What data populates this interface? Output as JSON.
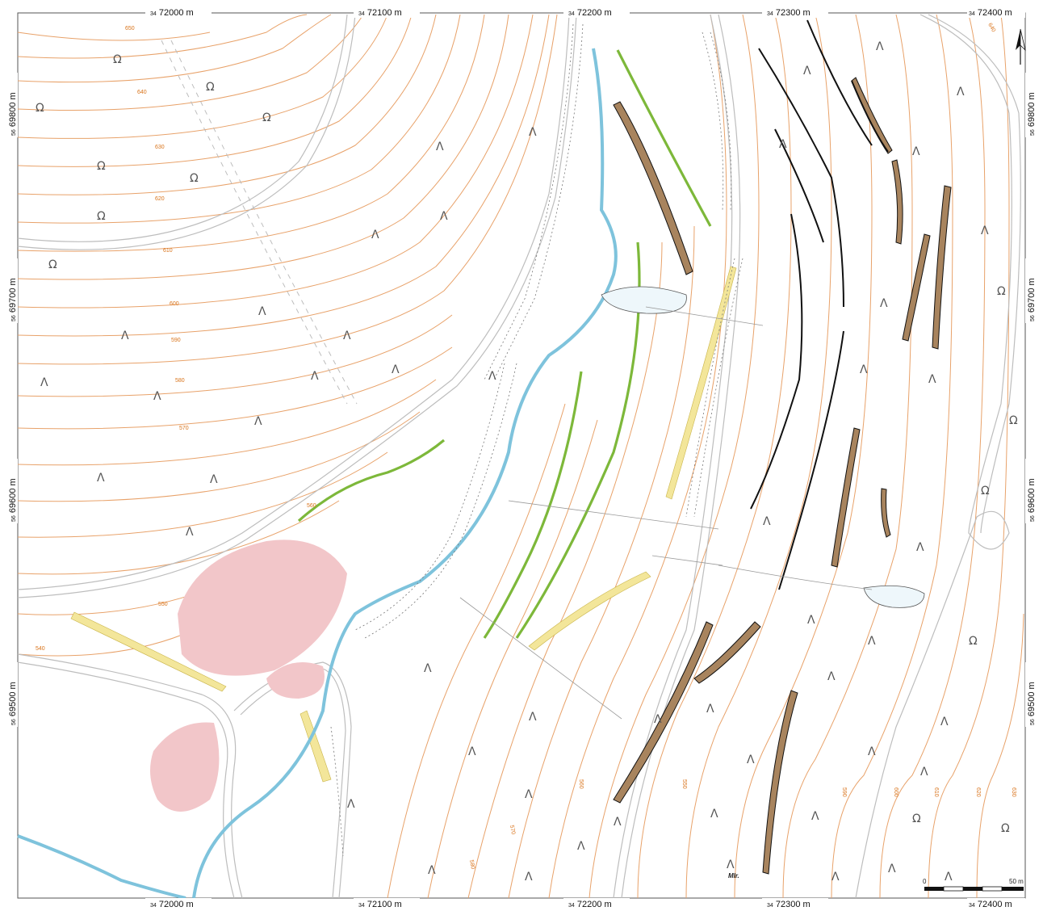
{
  "map": {
    "grid_top": [
      {
        "prefix": "34",
        "value": "72000 m"
      },
      {
        "prefix": "34",
        "value": "72100 m"
      },
      {
        "prefix": "34",
        "value": "72200 m"
      },
      {
        "prefix": "34",
        "value": "72300 m"
      },
      {
        "prefix": "34",
        "value": "72400 m"
      }
    ],
    "grid_bottom": [
      {
        "prefix": "34",
        "value": "72000 m"
      },
      {
        "prefix": "34",
        "value": "72100 m"
      },
      {
        "prefix": "34",
        "value": "72200 m"
      },
      {
        "prefix": "34",
        "value": "72300 m"
      },
      {
        "prefix": "34",
        "value": "72400 m"
      }
    ],
    "grid_side": [
      {
        "prefix": "56",
        "value": "69800 m"
      },
      {
        "prefix": "56",
        "value": "69700 m"
      },
      {
        "prefix": "56",
        "value": "69600 m"
      },
      {
        "prefix": "56",
        "value": "69500 m"
      }
    ],
    "contour_labels_left": [
      "650",
      "640",
      "630",
      "620",
      "610",
      "600",
      "590",
      "580",
      "570",
      "560",
      "550",
      "540"
    ],
    "contour_labels_right": [
      "560",
      "550",
      "570",
      "580",
      "590",
      "600",
      "610",
      "620",
      "630",
      "640"
    ],
    "scale_bar": {
      "start": "0",
      "end": "50 m"
    },
    "annotation": "Mlr.",
    "north_arrow": "north-arrow-icon",
    "colors": {
      "contour": "#e8a26a",
      "stream": "#7ec3dc",
      "green_band": "#7db83a",
      "yellow_band": "#f3e69a",
      "brown_band": "#a8845e",
      "pink_area": "#f2c6c9",
      "road": "#bdbdbd"
    }
  }
}
